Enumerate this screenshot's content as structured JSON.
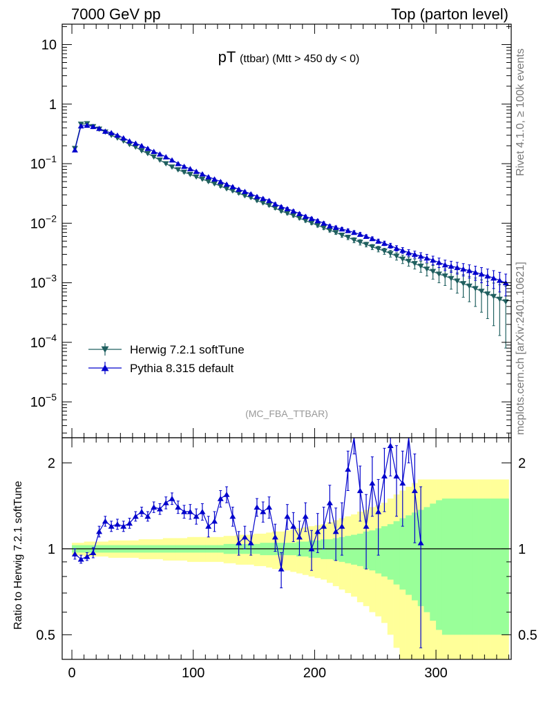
{
  "header": {
    "left": "7000 GeV pp",
    "right": "Top (parton level)"
  },
  "side_labels": {
    "rivet": "Rivet 4.1.0, ≥ 100k events",
    "mcplots": "mcplots.cern.ch [arXiv:2401.10621]"
  },
  "colors": {
    "herwig": "#1f5f5f",
    "pythia": "#0000cc",
    "band_inner": "#99ff99",
    "band_outer": "#ffff99"
  },
  "chart_data": [
    {
      "type": "line",
      "title": "pT",
      "title_sub": "(ttbar) (Mtt > 450 dy < 0)",
      "analysis_label": "(MC_FBA_TTBAR)",
      "xlabel": "",
      "ylabel": "",
      "yscale": "log",
      "xlim": [
        -8,
        362
      ],
      "ylim": [
        2.5e-06,
        22
      ],
      "y_ticks": [
        {
          "v": 10,
          "base": "10",
          "exp": ""
        },
        {
          "v": 1,
          "base": "1",
          "exp": ""
        },
        {
          "v": 0.1,
          "base": "10",
          "exp": "−1"
        },
        {
          "v": 0.01,
          "base": "10",
          "exp": "−2"
        },
        {
          "v": 0.001,
          "base": "10",
          "exp": "−3"
        },
        {
          "v": 0.0001,
          "base": "10",
          "exp": "−4"
        },
        {
          "v": 1e-05,
          "base": "10",
          "exp": "−5"
        }
      ],
      "legend": {
        "position": "bottom-left",
        "entries": [
          "Herwig 7.2.1 softTune",
          "Pythia 8.315 default"
        ]
      },
      "series": [
        {
          "name": "Herwig 7.2.1 softTune",
          "marker": "triangle-down",
          "x": [
            2.5,
            7.5,
            12.5,
            17.5,
            22.5,
            27.5,
            32.5,
            37.5,
            42.5,
            47.5,
            52.5,
            57.5,
            62.5,
            67.5,
            72.5,
            77.5,
            82.5,
            87.5,
            92.5,
            97.5,
            102.5,
            107.5,
            112.5,
            117.5,
            122.5,
            127.5,
            132.5,
            137.5,
            142.5,
            147.5,
            152.5,
            157.5,
            162.5,
            167.5,
            172.5,
            177.5,
            182.5,
            187.5,
            192.5,
            197.5,
            202.5,
            207.5,
            212.5,
            217.5,
            222.5,
            227.5,
            232.5,
            237.5,
            242.5,
            247.5,
            252.5,
            257.5,
            262.5,
            267.5,
            272.5,
            277.5,
            282.5,
            287.5,
            292.5,
            297.5,
            302.5,
            307.5,
            312.5,
            317.5,
            322.5,
            327.5,
            332.5,
            337.5,
            342.5,
            347.5,
            352.5,
            357.5
          ],
          "values": [
            0.18,
            0.46,
            0.47,
            0.42,
            0.38,
            0.34,
            0.3,
            0.27,
            0.24,
            0.21,
            0.19,
            0.165,
            0.148,
            0.13,
            0.115,
            0.1,
            0.088,
            0.079,
            0.072,
            0.066,
            0.06,
            0.055,
            0.05,
            0.046,
            0.042,
            0.038,
            0.035,
            0.032,
            0.029,
            0.027,
            0.024,
            0.022,
            0.02,
            0.018,
            0.016,
            0.0147,
            0.0135,
            0.0122,
            0.0111,
            0.0101,
            0.0092,
            0.0084,
            0.0076,
            0.007,
            0.0063,
            0.0058,
            0.0052,
            0.0048,
            0.0044,
            0.004,
            0.0037,
            0.0034,
            0.0031,
            0.0028,
            0.0025,
            0.0023,
            0.0021,
            0.0019,
            0.0017,
            0.00155,
            0.0014,
            0.0013,
            0.00118,
            0.00107,
            0.00097,
            0.00088,
            0.0008,
            0.00072,
            0.00065,
            0.00059,
            0.00053,
            0.00048
          ],
          "errors": [
            0.01,
            0.015,
            0.015,
            0.012,
            0.011,
            0.01,
            0.009,
            0.008,
            0.007,
            0.006,
            0.006,
            0.005,
            0.005,
            0.004,
            0.004,
            0.003,
            0.003,
            0.003,
            0.003,
            0.002,
            0.002,
            0.002,
            0.002,
            0.002,
            0.002,
            0.0015,
            0.0015,
            0.0015,
            0.0012,
            0.0012,
            0.001,
            0.001,
            0.001,
            0.001,
            0.0008,
            0.0008,
            0.0008,
            0.0007,
            0.0007,
            0.0006,
            0.0006,
            0.0006,
            0.0005,
            0.0005,
            0.0005,
            0.0005,
            0.0005,
            0.0005,
            0.0004,
            0.0004,
            0.0004,
            0.0004,
            0.0004,
            0.0004,
            0.0004,
            0.0004,
            0.0004,
            0.0004,
            0.0004,
            0.0004,
            0.0004,
            0.0004,
            0.0004,
            0.0004,
            0.0004,
            0.0004,
            0.0004,
            0.0004,
            0.0004,
            0.0004,
            0.0004,
            0.0004
          ]
        },
        {
          "name": "Pythia 8.315 default",
          "marker": "triangle-up",
          "x": [
            2.5,
            7.5,
            12.5,
            17.5,
            22.5,
            27.5,
            32.5,
            37.5,
            42.5,
            47.5,
            52.5,
            57.5,
            62.5,
            67.5,
            72.5,
            77.5,
            82.5,
            87.5,
            92.5,
            97.5,
            102.5,
            107.5,
            112.5,
            117.5,
            122.5,
            127.5,
            132.5,
            137.5,
            142.5,
            147.5,
            152.5,
            157.5,
            162.5,
            167.5,
            172.5,
            177.5,
            182.5,
            187.5,
            192.5,
            197.5,
            202.5,
            207.5,
            212.5,
            217.5,
            222.5,
            227.5,
            232.5,
            237.5,
            242.5,
            247.5,
            252.5,
            257.5,
            262.5,
            267.5,
            272.5,
            277.5,
            282.5,
            287.5,
            292.5,
            297.5,
            302.5,
            307.5,
            312.5,
            317.5,
            322.5,
            327.5,
            332.5,
            337.5,
            342.5,
            347.5,
            352.5,
            357.5
          ],
          "values": [
            0.17,
            0.43,
            0.44,
            0.42,
            0.39,
            0.35,
            0.33,
            0.3,
            0.27,
            0.24,
            0.22,
            0.2,
            0.18,
            0.16,
            0.145,
            0.13,
            0.115,
            0.1,
            0.09,
            0.082,
            0.074,
            0.067,
            0.06,
            0.055,
            0.05,
            0.045,
            0.041,
            0.037,
            0.034,
            0.031,
            0.028,
            0.026,
            0.024,
            0.021,
            0.019,
            0.0175,
            0.016,
            0.0145,
            0.013,
            0.012,
            0.011,
            0.01,
            0.009,
            0.0085,
            0.008,
            0.0075,
            0.007,
            0.0065,
            0.006,
            0.0055,
            0.005,
            0.0046,
            0.0042,
            0.0038,
            0.0035,
            0.0032,
            0.003,
            0.0028,
            0.0026,
            0.0024,
            0.0022,
            0.002,
            0.0019,
            0.0018,
            0.0017,
            0.0016,
            0.0015,
            0.0014,
            0.0013,
            0.0012,
            0.0011,
            0.001
          ],
          "errors": [
            0.01,
            0.015,
            0.015,
            0.012,
            0.011,
            0.01,
            0.009,
            0.008,
            0.007,
            0.006,
            0.006,
            0.005,
            0.005,
            0.004,
            0.004,
            0.003,
            0.003,
            0.003,
            0.003,
            0.002,
            0.002,
            0.002,
            0.002,
            0.002,
            0.002,
            0.0015,
            0.0015,
            0.0015,
            0.0012,
            0.0012,
            0.001,
            0.001,
            0.001,
            0.001,
            0.0008,
            0.0008,
            0.0008,
            0.0007,
            0.0007,
            0.0006,
            0.0006,
            0.0006,
            0.0005,
            0.0005,
            0.0005,
            0.0005,
            0.0005,
            0.0005,
            0.0004,
            0.0004,
            0.0004,
            0.0004,
            0.0004,
            0.0004,
            0.0004,
            0.0004,
            0.0004,
            0.0004,
            0.0004,
            0.0004,
            0.0004,
            0.0004,
            0.0004,
            0.0004,
            0.0004,
            0.0004,
            0.0004,
            0.0004,
            0.0004,
            0.0004,
            0.0004,
            0.0004
          ]
        }
      ]
    },
    {
      "type": "line",
      "title": "",
      "xlabel": "",
      "ylabel": "Ratio to Herwig 7.2.1 softTune",
      "yscale": "log",
      "xlim": [
        -8,
        362
      ],
      "ylim": [
        0.41,
        2.45
      ],
      "x_ticks": [
        0,
        100,
        200,
        300
      ],
      "y_ticks": [
        {
          "v": 0.5,
          "label": "0.5"
        },
        {
          "v": 1,
          "label": "1"
        },
        {
          "v": 2,
          "label": "2"
        }
      ],
      "reference_line": 1,
      "band": {
        "x_edges": [
          0,
          5,
          10,
          15,
          20,
          25,
          30,
          35,
          40,
          45,
          50,
          55,
          60,
          65,
          70,
          75,
          80,
          85,
          90,
          95,
          100,
          105,
          110,
          115,
          120,
          125,
          130,
          135,
          140,
          145,
          150,
          155,
          160,
          165,
          170,
          175,
          180,
          185,
          190,
          195,
          200,
          205,
          210,
          215,
          220,
          225,
          230,
          235,
          240,
          245,
          250,
          255,
          260,
          265,
          270,
          275,
          280,
          285,
          290,
          295,
          300,
          305,
          310,
          315,
          320,
          325,
          330,
          335,
          340,
          345,
          350,
          355,
          360
        ],
        "inner": [
          0.03,
          0.03,
          0.03,
          0.03,
          0.03,
          0.03,
          0.03,
          0.03,
          0.03,
          0.03,
          0.03,
          0.03,
          0.03,
          0.03,
          0.03,
          0.03,
          0.03,
          0.03,
          0.03,
          0.03,
          0.03,
          0.03,
          0.03,
          0.03,
          0.03,
          0.04,
          0.04,
          0.04,
          0.04,
          0.04,
          0.04,
          0.05,
          0.05,
          0.05,
          0.05,
          0.05,
          0.05,
          0.06,
          0.06,
          0.07,
          0.07,
          0.08,
          0.08,
          0.09,
          0.1,
          0.11,
          0.12,
          0.13,
          0.15,
          0.16,
          0.18,
          0.2,
          0.22,
          0.25,
          0.28,
          0.31,
          0.34,
          0.37,
          0.4,
          0.44,
          0.48,
          0.5,
          0.5,
          0.5,
          0.5,
          0.5,
          0.5,
          0.5,
          0.5,
          0.5,
          0.5,
          0.5
        ],
        "outer": [
          0.05,
          0.05,
          0.06,
          0.06,
          0.06,
          0.06,
          0.07,
          0.07,
          0.07,
          0.07,
          0.07,
          0.08,
          0.08,
          0.08,
          0.08,
          0.09,
          0.09,
          0.09,
          0.09,
          0.1,
          0.1,
          0.1,
          0.1,
          0.1,
          0.1,
          0.11,
          0.11,
          0.12,
          0.12,
          0.12,
          0.13,
          0.13,
          0.14,
          0.15,
          0.15,
          0.16,
          0.17,
          0.18,
          0.19,
          0.2,
          0.21,
          0.22,
          0.24,
          0.26,
          0.28,
          0.3,
          0.32,
          0.35,
          0.37,
          0.4,
          0.42,
          0.45,
          0.5,
          0.55,
          0.6,
          0.65,
          0.7,
          0.75,
          0.75,
          0.75,
          0.75,
          0.75,
          0.75,
          0.75,
          0.75,
          0.75,
          0.75,
          0.75,
          0.75,
          0.75,
          0.75,
          0.75
        ]
      },
      "series": [
        {
          "name": "Pythia 8.315 default / Herwig 7.2.1 softTune",
          "marker": "triangle-up",
          "x": [
            2.5,
            7.5,
            12.5,
            17.5,
            22.5,
            27.5,
            32.5,
            37.5,
            42.5,
            47.5,
            52.5,
            57.5,
            62.5,
            67.5,
            72.5,
            77.5,
            82.5,
            87.5,
            92.5,
            97.5,
            102.5,
            107.5,
            112.5,
            117.5,
            122.5,
            127.5,
            132.5,
            137.5,
            142.5,
            147.5,
            152.5,
            157.5,
            162.5,
            167.5,
            172.5,
            177.5,
            182.5,
            187.5,
            192.5,
            197.5,
            202.5,
            207.5,
            212.5,
            217.5,
            222.5,
            227.5,
            232.5,
            237.5,
            242.5,
            247.5,
            252.5,
            257.5,
            262.5,
            267.5,
            272.5,
            277.5,
            282.5,
            287.5
          ],
          "values": [
            0.96,
            0.92,
            0.94,
            0.97,
            1.15,
            1.25,
            1.2,
            1.22,
            1.2,
            1.23,
            1.3,
            1.35,
            1.3,
            1.4,
            1.38,
            1.45,
            1.5,
            1.4,
            1.35,
            1.35,
            1.3,
            1.35,
            1.2,
            1.25,
            1.5,
            1.55,
            1.3,
            1.05,
            1.1,
            1.05,
            1.4,
            1.35,
            1.4,
            1.1,
            0.85,
            1.3,
            1.2,
            1.1,
            1.3,
            1.0,
            1.15,
            1.2,
            1.45,
            1.15,
            1.2,
            1.9,
            2.5,
            1.6,
            1.2,
            1.7,
            1.35,
            1.8,
            2.3,
            1.8,
            1.7,
            2.5,
            1.6,
            1.05
          ],
          "errors": [
            0.04,
            0.03,
            0.03,
            0.04,
            0.05,
            0.05,
            0.05,
            0.05,
            0.05,
            0.05,
            0.05,
            0.05,
            0.05,
            0.06,
            0.06,
            0.07,
            0.07,
            0.07,
            0.07,
            0.08,
            0.08,
            0.09,
            0.1,
            0.1,
            0.1,
            0.1,
            0.1,
            0.1,
            0.1,
            0.1,
            0.1,
            0.11,
            0.12,
            0.12,
            0.12,
            0.13,
            0.14,
            0.15,
            0.15,
            0.16,
            0.18,
            0.2,
            0.22,
            0.24,
            0.25,
            0.3,
            0.35,
            0.35,
            0.35,
            0.4,
            0.4,
            0.45,
            0.5,
            0.5,
            0.5,
            0.5,
            0.55,
            0.6
          ]
        }
      ]
    }
  ]
}
